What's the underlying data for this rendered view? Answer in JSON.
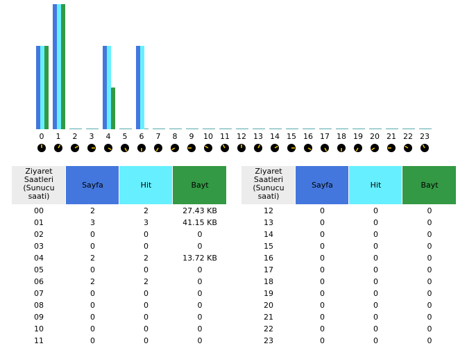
{
  "chart_data": {
    "type": "bar",
    "categories": [
      "0",
      "1",
      "2",
      "3",
      "4",
      "5",
      "6",
      "7",
      "8",
      "9",
      "10",
      "11",
      "12",
      "13",
      "14",
      "15",
      "16",
      "17",
      "18",
      "19",
      "20",
      "21",
      "22",
      "23"
    ],
    "ylim": [
      0,
      3
    ],
    "y2lim": [
      0,
      41.15
    ],
    "series": [
      {
        "name": "Sayfa",
        "color": "#4477dd",
        "values": [
          2,
          3,
          0,
          0,
          2,
          0,
          2,
          0,
          0,
          0,
          0,
          0,
          0,
          0,
          0,
          0,
          0,
          0,
          0,
          0,
          0,
          0,
          0,
          0
        ]
      },
      {
        "name": "Hit",
        "color": "#66f0ff",
        "values": [
          2,
          3,
          0,
          0,
          2,
          0,
          2,
          0,
          0,
          0,
          0,
          0,
          0,
          0,
          0,
          0,
          0,
          0,
          0,
          0,
          0,
          0,
          0,
          0
        ]
      },
      {
        "name": "Bayt",
        "color": "#339944",
        "axis": "y2",
        "values": [
          27.43,
          41.15,
          0,
          0,
          13.72,
          0,
          0,
          0,
          0,
          0,
          0,
          0,
          0,
          0,
          0,
          0,
          0,
          0,
          0,
          0,
          0,
          0,
          0,
          0
        ],
        "value_labels": [
          "27.43 KB",
          "41.15 KB",
          "0",
          "0",
          "13.72 KB",
          "0",
          "0",
          "0",
          "0",
          "0",
          "0",
          "0",
          "0",
          "0",
          "0",
          "0",
          "0",
          "0",
          "0",
          "0",
          "0",
          "0",
          "0",
          "0"
        ]
      }
    ]
  },
  "table": {
    "header_lines": [
      "Ziyaret",
      "Saatleri",
      "(Sunucu",
      "saati)"
    ],
    "hours": [
      "00",
      "01",
      "02",
      "03",
      "04",
      "05",
      "06",
      "07",
      "08",
      "09",
      "10",
      "11",
      "12",
      "13",
      "14",
      "15",
      "16",
      "17",
      "18",
      "19",
      "20",
      "21",
      "22",
      "23"
    ]
  }
}
